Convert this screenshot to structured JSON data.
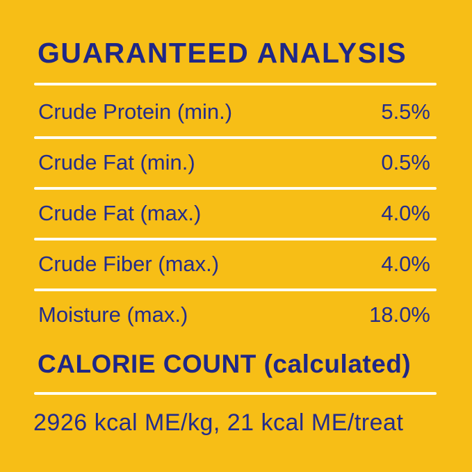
{
  "label": {
    "title": "GUARANTEED ANALYSIS",
    "analysis_table": {
      "rows": [
        {
          "name": "Crude Protein (min.)",
          "value": "5.5%"
        },
        {
          "name": "Crude Fat (min.)",
          "value": "0.5%"
        },
        {
          "name": "Crude Fat (max.)",
          "value": "4.0%"
        },
        {
          "name": "Crude Fiber (max.)",
          "value": "4.0%"
        },
        {
          "name": "Moisture (max.)",
          "value": "18.0%"
        }
      ]
    },
    "calorie_section": {
      "heading": "CALORIE COUNT (calculated)",
      "text": "2926 kcal ME/kg, 21 kcal ME/treat"
    },
    "colors": {
      "background": "#F7BE16",
      "text_navy": "#232C8C",
      "heading_navy": "#1F2787",
      "divider_cream": "#FFFEF2"
    }
  }
}
